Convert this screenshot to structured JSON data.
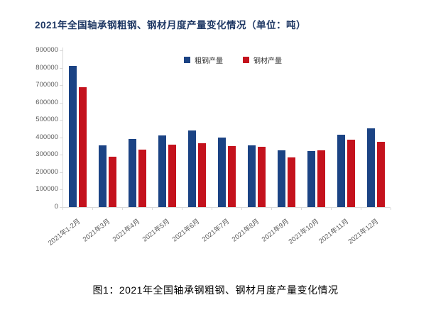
{
  "title": "2021年全国轴承钢粗钢、钢材月度产量变化情况（单位：吨）",
  "caption": "图1：2021年全国轴承钢粗钢、钢材月度产量变化情况",
  "colors": {
    "crude_steel_bar": "#1b4384",
    "rolled_steel_bar": "#c4121d",
    "title_text": "#1f3864",
    "axis_line": "#d9d9d9",
    "tick_label": "#595959"
  },
  "chart_data": {
    "type": "bar",
    "title": "2021年全国轴承钢粗钢、钢材月度产量变化情况",
    "unit": "吨",
    "categories": [
      "2021年1-2月",
      "2021年3月",
      "2021年4月",
      "2021年5月",
      "2021年6月",
      "2021年7月",
      "2021年8月",
      "2021年9月",
      "2021年10月",
      "2021年11月",
      "2021年12月"
    ],
    "series": [
      {
        "name": "粗钢产量",
        "color": "#1b4384",
        "values": [
          810000,
          355000,
          390000,
          410000,
          440000,
          400000,
          355000,
          325000,
          320000,
          415000,
          450000
        ]
      },
      {
        "name": "钢材产量",
        "color": "#c4121d",
        "values": [
          690000,
          290000,
          330000,
          360000,
          365000,
          350000,
          345000,
          285000,
          325000,
          385000,
          375000
        ]
      }
    ],
    "ylim": [
      0,
      900000
    ],
    "ytick_interval": 100000,
    "ytick_labels": [
      "0",
      "100000",
      "200000",
      "300000",
      "400000",
      "500000",
      "600000",
      "700000",
      "800000",
      "900000"
    ],
    "xlabel": "",
    "ylabel": "",
    "grid": false,
    "legend_position": "top-center"
  }
}
